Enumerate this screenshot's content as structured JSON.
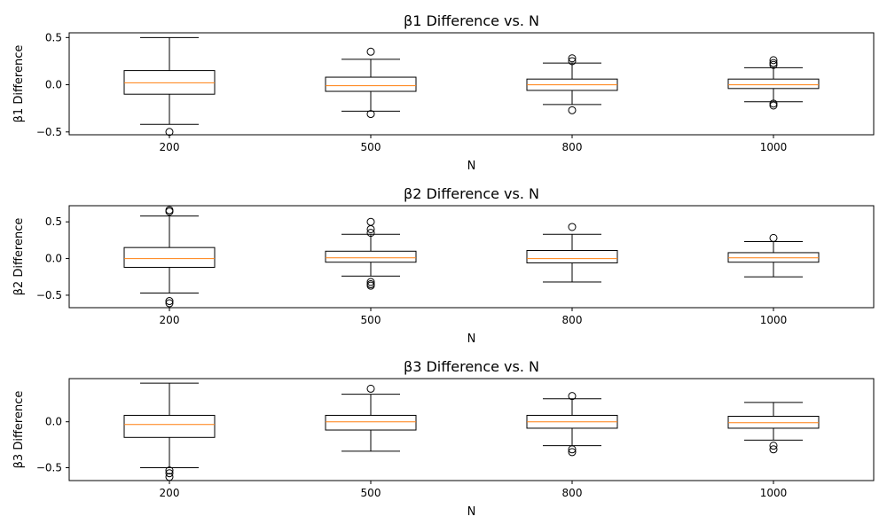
{
  "chart_data": [
    {
      "type": "box",
      "title": "β1 Difference vs. N",
      "xlabel": "N",
      "ylabel": "β1 Difference",
      "ylim": [
        -0.53,
        0.55
      ],
      "yticks": [
        -0.5,
        0.0,
        0.5
      ],
      "ytick_labels": [
        "−0.5",
        "0.0",
        "0.5"
      ],
      "categories": [
        "200",
        "500",
        "800",
        "1000"
      ],
      "boxes": [
        {
          "category": "200",
          "whisker_low": -0.42,
          "q1": -0.1,
          "median": 0.02,
          "q3": 0.15,
          "whisker_high": 0.5,
          "outliers": [
            -0.5
          ]
        },
        {
          "category": "500",
          "whisker_low": -0.28,
          "q1": -0.07,
          "median": -0.01,
          "q3": 0.08,
          "whisker_high": 0.27,
          "outliers": [
            0.35,
            -0.31
          ]
        },
        {
          "category": "800",
          "whisker_low": -0.21,
          "q1": -0.06,
          "median": 0.0,
          "q3": 0.06,
          "whisker_high": 0.23,
          "outliers": [
            0.28,
            0.25,
            -0.27
          ]
        },
        {
          "category": "1000",
          "whisker_low": -0.18,
          "q1": -0.04,
          "median": 0.0,
          "q3": 0.06,
          "whisker_high": 0.18,
          "outliers": [
            0.26,
            0.23,
            0.21,
            -0.2,
            -0.22
          ]
        }
      ]
    },
    {
      "type": "box",
      "title": "β2 Difference vs. N",
      "xlabel": "N",
      "ylabel": "β2 Difference",
      "ylim": [
        -0.67,
        0.72
      ],
      "yticks": [
        -0.5,
        0.0,
        0.5
      ],
      "ytick_labels": [
        "−0.5",
        "0.0",
        "0.5"
      ],
      "categories": [
        "200",
        "500",
        "800",
        "1000"
      ],
      "boxes": [
        {
          "category": "200",
          "whisker_low": -0.47,
          "q1": -0.12,
          "median": 0.0,
          "q3": 0.15,
          "whisker_high": 0.58,
          "outliers": [
            0.66,
            0.64,
            -0.58,
            -0.61
          ]
        },
        {
          "category": "500",
          "whisker_low": -0.24,
          "q1": -0.05,
          "median": 0.01,
          "q3": 0.1,
          "whisker_high": 0.33,
          "outliers": [
            0.5,
            0.4,
            0.35,
            -0.32,
            -0.35,
            -0.37
          ]
        },
        {
          "category": "800",
          "whisker_low": -0.32,
          "q1": -0.06,
          "median": 0.0,
          "q3": 0.11,
          "whisker_high": 0.33,
          "outliers": [
            0.43
          ]
        },
        {
          "category": "1000",
          "whisker_low": -0.25,
          "q1": -0.05,
          "median": 0.01,
          "q3": 0.08,
          "whisker_high": 0.23,
          "outliers": [
            0.28
          ]
        }
      ]
    },
    {
      "type": "box",
      "title": "β3 Difference vs. N",
      "xlabel": "N",
      "ylabel": "β3 Difference",
      "ylim": [
        -0.64,
        0.47
      ],
      "yticks": [
        -0.5,
        0.0
      ],
      "ytick_labels": [
        "−0.5",
        "0.0"
      ],
      "categories": [
        "200",
        "500",
        "800",
        "1000"
      ],
      "boxes": [
        {
          "category": "200",
          "whisker_low": -0.5,
          "q1": -0.17,
          "median": -0.03,
          "q3": 0.07,
          "whisker_high": 0.42,
          "outliers": [
            -0.53,
            -0.56,
            -0.6
          ]
        },
        {
          "category": "500",
          "whisker_low": -0.32,
          "q1": -0.09,
          "median": 0.0,
          "q3": 0.07,
          "whisker_high": 0.3,
          "outliers": [
            0.36
          ]
        },
        {
          "category": "800",
          "whisker_low": -0.26,
          "q1": -0.07,
          "median": 0.0,
          "q3": 0.07,
          "whisker_high": 0.25,
          "outliers": [
            0.28,
            -0.3,
            -0.33
          ]
        },
        {
          "category": "1000",
          "whisker_low": -0.2,
          "q1": -0.07,
          "median": -0.01,
          "q3": 0.06,
          "whisker_high": 0.21,
          "outliers": [
            -0.26,
            -0.3
          ]
        }
      ]
    }
  ],
  "colors": {
    "box": "#000000",
    "median": "#ff7f0e",
    "whisker": "#000000",
    "outlier": "#000000"
  }
}
